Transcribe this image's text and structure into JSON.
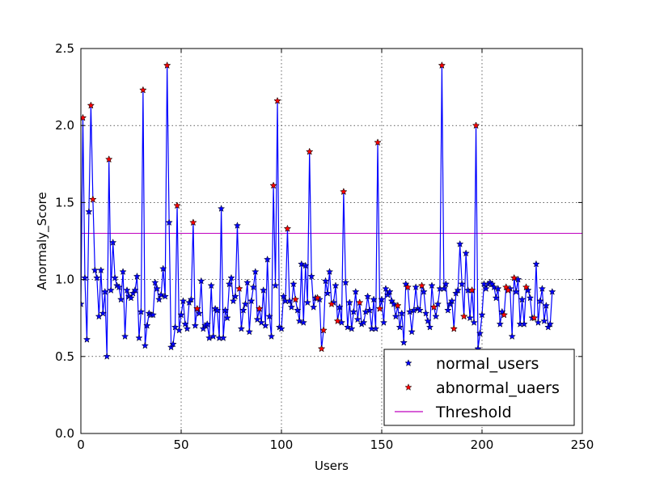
{
  "chart_data": {
    "type": "line",
    "xlabel": "Users",
    "ylabel": "Anormaly_Score",
    "xlim": [
      0,
      250
    ],
    "ylim": [
      0.0,
      2.5
    ],
    "xticks": [
      0,
      50,
      100,
      150,
      200,
      250
    ],
    "yticks": [
      0.0,
      0.5,
      1.0,
      1.5,
      2.0,
      2.5
    ],
    "xtick_labels": [
      "0",
      "50",
      "100",
      "150",
      "200",
      "250"
    ],
    "ytick_labels": [
      "0.0",
      "0.5",
      "1.0",
      "1.5",
      "2.0",
      "2.5"
    ],
    "grid": true,
    "legend_position": "lower-right",
    "threshold": 1.3,
    "colors": {
      "line": "#0000ff",
      "normal_marker": "#0000ff",
      "abnormal_marker": "#ff0000",
      "threshold": "#bf00bf"
    },
    "series": [
      {
        "name": "normal_users",
        "marker": "star",
        "values": [
          0.84,
          2.05,
          1.01,
          0.61,
          1.44,
          2.13,
          1.52,
          1.06,
          1.01,
          0.76,
          1.06,
          0.78,
          0.92,
          0.5,
          1.78,
          0.93,
          1.24,
          1.01,
          0.96,
          0.95,
          0.87,
          1.05,
          0.63,
          0.93,
          0.89,
          0.88,
          0.91,
          0.93,
          1.02,
          0.62,
          0.79,
          2.23,
          0.57,
          0.7,
          0.78,
          0.77,
          0.77,
          0.98,
          0.94,
          0.87,
          0.9,
          1.07,
          0.89,
          2.39,
          1.37,
          0.56,
          0.58,
          0.69,
          1.48,
          0.67,
          0.77,
          0.86,
          0.71,
          0.68,
          0.85,
          0.87,
          1.37,
          0.7,
          0.81,
          0.78,
          0.99,
          0.68,
          0.7,
          0.71,
          0.62,
          0.96,
          0.63,
          0.81,
          0.8,
          0.62,
          1.46,
          0.62,
          0.8,
          0.75,
          0.97,
          1.01,
          0.86,
          0.89,
          1.35,
          0.94,
          0.68,
          0.8,
          0.84,
          0.98,
          0.66,
          0.86,
          0.95,
          1.05,
          0.74,
          0.81,
          0.72,
          0.93,
          0.7,
          1.13,
          0.76,
          0.63,
          1.61,
          0.96,
          2.16,
          0.69,
          0.68,
          0.89,
          0.86,
          1.33,
          0.86,
          0.82,
          0.97,
          0.87,
          0.8,
          0.73,
          1.1,
          0.72,
          1.09,
          0.85,
          1.83,
          1.02,
          0.82,
          0.88,
          0.88,
          0.87,
          0.55,
          0.67,
          0.99,
          0.91,
          1.05,
          0.84,
          0.85,
          0.96,
          0.73,
          0.82,
          0.72,
          1.57,
          0.98,
          0.69,
          0.85,
          0.68,
          0.79,
          0.92,
          0.74,
          0.85,
          0.71,
          0.72,
          0.79,
          0.89,
          0.8,
          0.68,
          0.87,
          0.68,
          1.89,
          0.81,
          0.87,
          0.72,
          0.94,
          0.9,
          0.92,
          0.86,
          0.84,
          0.76,
          0.83,
          0.69,
          0.78,
          0.59,
          0.97,
          0.95,
          0.79,
          0.66,
          0.8,
          0.95,
          0.81,
          0.8,
          0.96,
          0.92,
          0.78,
          0.73,
          0.69,
          0.96,
          0.82,
          0.76,
          0.84,
          0.94,
          2.39,
          0.94,
          0.97,
          0.8,
          0.84,
          0.86,
          0.68,
          0.91,
          0.93,
          1.23,
          0.97,
          0.76,
          1.17,
          0.93,
          0.75,
          0.93,
          0.72,
          2.0,
          0.55,
          0.65,
          0.77,
          0.97,
          0.94,
          0.97,
          0.98,
          0.97,
          0.95,
          0.88,
          0.94,
          0.71,
          0.79,
          0.77,
          0.95,
          0.93,
          0.94,
          0.63,
          1.01,
          0.92,
          1.0,
          0.71,
          0.87,
          0.71,
          0.95,
          0.93,
          0.88,
          0.75,
          0.75,
          1.1,
          0.72,
          0.86,
          0.94,
          0.73,
          0.83,
          0.69,
          0.71,
          0.92
        ]
      },
      {
        "name": "abnormal_uaers",
        "marker": "star",
        "indices": [
          1,
          5,
          6,
          14,
          31,
          43,
          48,
          56,
          58,
          79,
          89,
          96,
          98,
          103,
          107,
          114,
          118,
          120,
          121,
          125,
          128,
          131,
          139,
          148,
          149,
          158,
          163,
          170,
          176,
          180,
          186,
          191,
          195,
          197,
          211,
          212,
          213,
          216,
          222,
          226
        ]
      },
      {
        "name": "Threshold",
        "type": "hline",
        "value": 1.3
      }
    ]
  }
}
